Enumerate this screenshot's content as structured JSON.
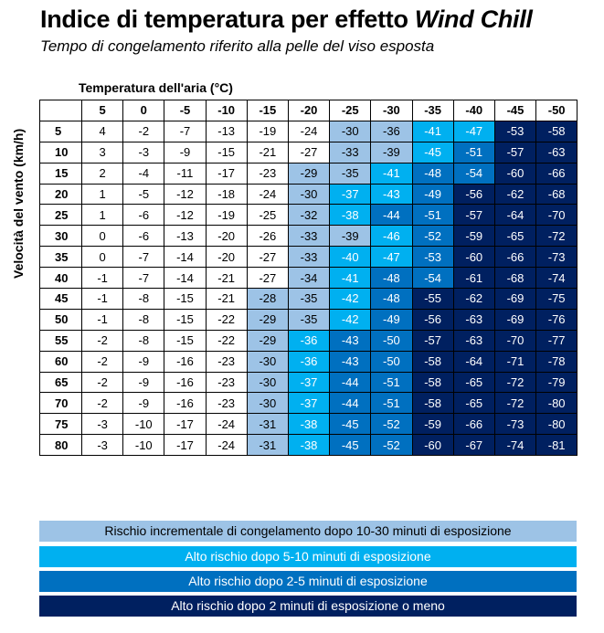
{
  "title": "Indice di temperatura per effetto ",
  "title_italic": "Wind Chill",
  "subtitle": "Tempo di congelamento riferito alla pelle del viso esposta",
  "xlabel": "Temperatura dell'aria (°C)",
  "ylabel": "Velocità del vento (km/h)",
  "colors": {
    "level1": "#9dc3e6",
    "level2": "#00b0f0",
    "level3": "#0070c0",
    "level4": "#002060"
  },
  "chart_data": {
    "type": "table",
    "temperatures": [
      5,
      0,
      -5,
      -10,
      -15,
      -20,
      -25,
      -30,
      -35,
      -40,
      -45,
      -50
    ],
    "wind_speeds": [
      5,
      10,
      15,
      20,
      25,
      30,
      35,
      40,
      45,
      50,
      55,
      60,
      65,
      70,
      75,
      80
    ],
    "values": [
      [
        4,
        -2,
        -7,
        -13,
        -19,
        -24,
        -30,
        -36,
        -41,
        -47,
        -53,
        -58
      ],
      [
        3,
        -3,
        -9,
        -15,
        -21,
        -27,
        -33,
        -39,
        -45,
        -51,
        -57,
        -63
      ],
      [
        2,
        -4,
        -11,
        -17,
        -23,
        -29,
        -35,
        -41,
        -48,
        -54,
        -60,
        -66
      ],
      [
        1,
        -5,
        -12,
        -18,
        -24,
        -30,
        -37,
        -43,
        -49,
        -56,
        -62,
        -68
      ],
      [
        1,
        -6,
        -12,
        -19,
        -25,
        -32,
        -38,
        -44,
        -51,
        -57,
        -64,
        -70
      ],
      [
        0,
        -6,
        -13,
        -20,
        -26,
        -33,
        -39,
        -46,
        -52,
        -59,
        -65,
        -72
      ],
      [
        0,
        -7,
        -14,
        -20,
        -27,
        -33,
        -40,
        -47,
        -53,
        -60,
        -66,
        -73
      ],
      [
        -1,
        -7,
        -14,
        -21,
        -27,
        -34,
        -41,
        -48,
        -54,
        -61,
        -68,
        -74
      ],
      [
        -1,
        -8,
        -15,
        -21,
        -28,
        -35,
        -42,
        -48,
        -55,
        -62,
        -69,
        -75
      ],
      [
        -1,
        -8,
        -15,
        -22,
        -29,
        -35,
        -42,
        -49,
        -56,
        -63,
        -69,
        -76
      ],
      [
        -2,
        -8,
        -15,
        -22,
        -29,
        -36,
        -43,
        -50,
        -57,
        -63,
        -70,
        -77
      ],
      [
        -2,
        -9,
        -16,
        -23,
        -30,
        -36,
        -43,
        -50,
        -58,
        -64,
        -71,
        -78
      ],
      [
        -2,
        -9,
        -16,
        -23,
        -30,
        -37,
        -44,
        -51,
        -58,
        -65,
        -72,
        -79
      ],
      [
        -2,
        -9,
        -16,
        -23,
        -30,
        -37,
        -44,
        -51,
        -58,
        -65,
        -72,
        -80
      ],
      [
        -3,
        -10,
        -17,
        -24,
        -31,
        -38,
        -45,
        -52,
        -59,
        -66,
        -73,
        -80
      ],
      [
        -3,
        -10,
        -17,
        -24,
        -31,
        -38,
        -45,
        -52,
        -60,
        -67,
        -74,
        -81
      ]
    ],
    "risk_levels": [
      [
        0,
        0,
        0,
        0,
        0,
        0,
        1,
        1,
        2,
        2,
        4,
        4
      ],
      [
        0,
        0,
        0,
        0,
        0,
        0,
        1,
        1,
        2,
        3,
        4,
        4
      ],
      [
        0,
        0,
        0,
        0,
        0,
        1,
        1,
        2,
        3,
        3,
        4,
        4
      ],
      [
        0,
        0,
        0,
        0,
        0,
        1,
        2,
        2,
        3,
        4,
        4,
        4
      ],
      [
        0,
        0,
        0,
        0,
        0,
        1,
        2,
        3,
        3,
        4,
        4,
        4
      ],
      [
        0,
        0,
        0,
        0,
        0,
        1,
        1,
        2,
        3,
        4,
        4,
        4
      ],
      [
        0,
        0,
        0,
        0,
        0,
        1,
        2,
        2,
        3,
        4,
        4,
        4
      ],
      [
        0,
        0,
        0,
        0,
        0,
        1,
        2,
        3,
        3,
        4,
        4,
        4
      ],
      [
        0,
        0,
        0,
        0,
        1,
        1,
        2,
        3,
        4,
        4,
        4,
        4
      ],
      [
        0,
        0,
        0,
        0,
        1,
        1,
        2,
        3,
        4,
        4,
        4,
        4
      ],
      [
        0,
        0,
        0,
        0,
        1,
        2,
        3,
        3,
        4,
        4,
        4,
        4
      ],
      [
        0,
        0,
        0,
        0,
        1,
        2,
        3,
        3,
        4,
        4,
        4,
        4
      ],
      [
        0,
        0,
        0,
        0,
        1,
        2,
        3,
        3,
        4,
        4,
        4,
        4
      ],
      [
        0,
        0,
        0,
        0,
        1,
        2,
        3,
        3,
        4,
        4,
        4,
        4
      ],
      [
        0,
        0,
        0,
        0,
        1,
        2,
        3,
        3,
        4,
        4,
        4,
        4
      ],
      [
        0,
        0,
        0,
        0,
        1,
        2,
        3,
        3,
        4,
        4,
        4,
        4
      ]
    ]
  },
  "legend": [
    "Rischio incrementale di congelamento dopo  10-30 minuti di esposizione",
    "Alto rischio dopo 5-10 minuti di esposizione",
    "Alto rischio dopo 2-5 minuti di esposizione",
    "Alto rischio dopo 2 minuti di esposizione o meno"
  ]
}
